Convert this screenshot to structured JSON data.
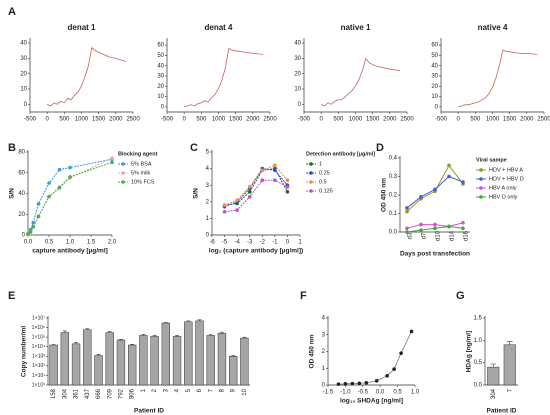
{
  "chart_data": [
    {
      "panel": "A",
      "type": "line",
      "title": "denat 1",
      "x": [
        0,
        100,
        200,
        300,
        400,
        500,
        600,
        700,
        800,
        900,
        1000,
        1100,
        1200,
        1300,
        1400,
        1600,
        1800,
        2000,
        2300
      ],
      "values": [
        0,
        -1,
        1,
        0,
        2,
        1,
        4,
        3,
        6,
        8,
        12,
        18,
        25,
        37,
        35,
        33,
        31,
        30,
        28
      ],
      "color": "#c9605a",
      "xlim": [
        -500,
        2500
      ],
      "xticks": [
        -500,
        0,
        500,
        1000,
        1500,
        2000,
        2500
      ],
      "ylim": [
        -5,
        42
      ],
      "yticks": [
        0,
        10,
        20,
        30,
        40
      ]
    },
    {
      "type": "line",
      "title": "denat 4",
      "x": [
        0,
        100,
        200,
        300,
        400,
        500,
        600,
        700,
        800,
        900,
        1000,
        1100,
        1200,
        1300,
        1400,
        1600,
        1800,
        2000,
        2300
      ],
      "values": [
        0,
        1,
        2,
        1,
        3,
        4,
        6,
        5,
        9,
        12,
        18,
        26,
        38,
        57,
        55,
        54,
        53,
        52,
        51
      ],
      "color": "#c9605a",
      "xlim": [
        -500,
        2500
      ],
      "xticks": [
        -500,
        0,
        500,
        1000,
        1500,
        2000,
        2500
      ],
      "ylim": [
        -5,
        65
      ],
      "yticks": [
        0,
        10,
        20,
        30,
        40,
        50,
        60
      ]
    },
    {
      "type": "line",
      "title": "native 1",
      "x": [
        0,
        100,
        200,
        300,
        400,
        500,
        600,
        700,
        800,
        900,
        1000,
        1100,
        1200,
        1300,
        1400,
        1600,
        1800,
        2000,
        2300
      ],
      "values": [
        0,
        -1,
        1,
        0,
        2,
        3,
        3,
        5,
        7,
        9,
        12,
        16,
        22,
        30,
        27,
        25,
        24,
        23,
        22
      ],
      "color": "#c9605a",
      "xlim": [
        -500,
        2500
      ],
      "xticks": [
        -500,
        0,
        500,
        1000,
        1500,
        2000,
        2500
      ],
      "ylim": [
        -5,
        42
      ],
      "yticks": [
        0,
        10,
        20,
        30,
        40
      ]
    },
    {
      "type": "line",
      "title": "native 4",
      "x": [
        0,
        100,
        200,
        300,
        400,
        500,
        600,
        700,
        800,
        900,
        1000,
        1100,
        1200,
        1300,
        1400,
        1600,
        1800,
        2000,
        2300
      ],
      "values": [
        0,
        1,
        2,
        2,
        3,
        4,
        5,
        7,
        9,
        13,
        19,
        28,
        40,
        55,
        54,
        53,
        52,
        52,
        51
      ],
      "color": "#c9605a",
      "xlim": [
        -500,
        2500
      ],
      "xticks": [
        -500,
        0,
        500,
        1000,
        1500,
        2000,
        2500
      ],
      "ylim": [
        -5,
        65
      ],
      "yticks": [
        0,
        10,
        20,
        30,
        40,
        50,
        60
      ]
    },
    {
      "panel": "B",
      "type": "line",
      "dashed": true,
      "markers": true,
      "x_label": "capture antibody [µg/ml]",
      "y_label": "S/N",
      "legend_title": "Blocking agent",
      "x": [
        0,
        0.0625,
        0.125,
        0.25,
        0.5,
        0.75,
        1,
        2
      ],
      "series": [
        {
          "name": "5% BSA",
          "color": "#3a9ad9",
          "values": [
            1,
            5,
            12,
            30,
            50,
            63,
            65,
            73
          ]
        },
        {
          "name": "5% milk",
          "color": "#f4a0ae",
          "values": [
            1,
            3,
            8,
            18,
            37,
            45,
            55,
            74
          ]
        },
        {
          "name": "10% FCS",
          "color": "#4caf50",
          "values": [
            1,
            3,
            8,
            18,
            37,
            46,
            56,
            70
          ]
        }
      ],
      "xlim": [
        0,
        2
      ],
      "xticks": [
        {
          "value": 0,
          "label": "0.0"
        },
        {
          "value": 0.5,
          "label": "0.5"
        },
        {
          "value": 1,
          "label": "1.0"
        },
        {
          "value": 1.5,
          "label": "1.5"
        },
        {
          "value": 2,
          "label": "2.0"
        }
      ],
      "ylim": [
        0,
        80
      ],
      "yticks": [
        0,
        20,
        40,
        60,
        80
      ]
    },
    {
      "panel": "C",
      "type": "line",
      "dashed": true,
      "markers": true,
      "x_label": "log₂ (capture antibody [µg/ml])",
      "y_label": "S/N",
      "legend_title": "Detection antibody [µg/ml]",
      "x": [
        -5,
        -4,
        -3,
        -2,
        -1,
        0
      ],
      "series": [
        {
          "name": "1",
          "color": "#1b6e1b",
          "values": [
            1.8,
            1.9,
            2.6,
            3.9,
            4.0,
            2.6
          ]
        },
        {
          "name": "0.25",
          "color": "#2b4fd0",
          "values": [
            1.7,
            2.0,
            2.8,
            4.0,
            3.9,
            3.0
          ]
        },
        {
          "name": "0.5",
          "color": "#f08a5d",
          "values": [
            1.8,
            2.1,
            2.9,
            3.9,
            4.2,
            3.3
          ]
        },
        {
          "name": "0.125",
          "color": "#c04fd0",
          "values": [
            1.4,
            1.5,
            2.3,
            3.3,
            3.3,
            2.9
          ]
        }
      ],
      "xlim": [
        -6,
        1
      ],
      "xticks": [
        -6,
        -5,
        -4,
        -3,
        -2,
        -1,
        0,
        1
      ],
      "ylim": [
        0,
        5
      ],
      "yticks": [
        0,
        1,
        2,
        3,
        4,
        5
      ]
    },
    {
      "panel": "D",
      "type": "line",
      "markers": true,
      "x_label": "Days post transfection",
      "y_label": "OD 450 nm",
      "legend_title": "Viral sampe",
      "categories": [
        "d3",
        "d7",
        "d10",
        "d14",
        "d16"
      ],
      "series": [
        {
          "name": "HDV + HBV A",
          "color": "#8f9a1c",
          "values": [
            0.11,
            0.18,
            0.22,
            0.36,
            0.26
          ]
        },
        {
          "name": "HDV + HBV D",
          "color": "#4a5bd4",
          "values": [
            0.13,
            0.19,
            0.23,
            0.3,
            0.27
          ]
        },
        {
          "name": "HBV A only",
          "color": "#d14fd4",
          "values": [
            0.02,
            0.04,
            0.04,
            0.03,
            0.05
          ]
        },
        {
          "name": "HBV D only",
          "color": "#3aaa35",
          "values": [
            0.0,
            0.01,
            0.02,
            0.03,
            0.02
          ]
        }
      ],
      "ylim": [
        0,
        0.4
      ],
      "yticks": [
        {
          "value": 0,
          "label": "0.0"
        },
        {
          "value": 0.1,
          "label": "0.1"
        },
        {
          "value": 0.2,
          "label": "0.2"
        },
        {
          "value": 0.3,
          "label": "0.3"
        },
        {
          "value": 0.4,
          "label": "0.4"
        }
      ]
    },
    {
      "panel": "E",
      "type": "bar",
      "log_scale": true,
      "color": "#a6a6a6",
      "x_label": "Patient ID",
      "y_label": "Copy number/ml",
      "categories": [
        "158",
        "304",
        "361",
        "437",
        "666",
        "709",
        "792",
        "806",
        "1",
        "2",
        "3",
        "4",
        "5",
        "6",
        "7",
        "8",
        "9",
        "10"
      ],
      "values": [
        15000,
        300000,
        20000,
        600000,
        1200,
        300000,
        50000,
        15000,
        150000,
        120000,
        3000000,
        120000,
        4000000,
        5000000,
        150000,
        250000,
        1000,
        80000
      ],
      "errors": [
        2000,
        150000,
        8000,
        200000,
        400,
        80000,
        10000,
        3000,
        40000,
        30000,
        500000,
        30000,
        1000000,
        1500000,
        50000,
        80000,
        200,
        20000
      ],
      "ylim": [
        1,
        10000000
      ],
      "yticks": [
        {
          "value": 1,
          "label": "1×10⁰"
        },
        {
          "value": 10,
          "label": "1×10¹"
        },
        {
          "value": 100,
          "label": "1×10²"
        },
        {
          "value": 1000,
          "label": "1×10³"
        },
        {
          "value": 10000,
          "label": "1×10⁴"
        },
        {
          "value": 100000,
          "label": "1×10⁵"
        },
        {
          "value": 1000000,
          "label": "1×10⁶"
        },
        {
          "value": 10000000,
          "label": "1×10⁷"
        }
      ]
    },
    {
      "panel": "F",
      "type": "scatter",
      "line": true,
      "color": "#222222",
      "x_label": "log₁₀ SHDAg [ng/ml]",
      "y_label": "OD 450 nm",
      "x": [
        -1.2,
        -1.0,
        -0.8,
        -0.6,
        -0.4,
        -0.1,
        0.2,
        0.4,
        0.6,
        0.9
      ],
      "values": [
        0.05,
        0.07,
        0.08,
        0.1,
        0.13,
        0.25,
        0.55,
        0.95,
        1.9,
        3.2
      ],
      "xlim": [
        -1.5,
        1
      ],
      "xticks": [
        {
          "value": -1.5,
          "label": "-1.5"
        },
        {
          "value": -1,
          "label": "-1.0"
        },
        {
          "value": -0.5,
          "label": "-0.5"
        },
        {
          "value": 0,
          "label": "0.0"
        },
        {
          "value": 0.5,
          "label": "0.5"
        },
        {
          "value": 1,
          "label": "1.0"
        }
      ],
      "ylim": [
        0,
        4
      ],
      "yticks": [
        0,
        1,
        2,
        3,
        4
      ]
    },
    {
      "panel": "G",
      "type": "bar",
      "color": "#a6a6a6",
      "x_label": "Patient ID",
      "y_label": "HDAg [ng/ml]",
      "categories": [
        "304",
        "7"
      ],
      "values": [
        0.4,
        0.9
      ],
      "errors": [
        0.07,
        0.07
      ],
      "ylim": [
        0,
        1.5
      ],
      "yticks": [
        {
          "value": 0,
          "label": "0.0"
        },
        {
          "value": 0.5,
          "label": "0.5"
        },
        {
          "value": 1,
          "label": "1.0"
        },
        {
          "value": 1.5,
          "label": "1.5"
        }
      ]
    }
  ]
}
